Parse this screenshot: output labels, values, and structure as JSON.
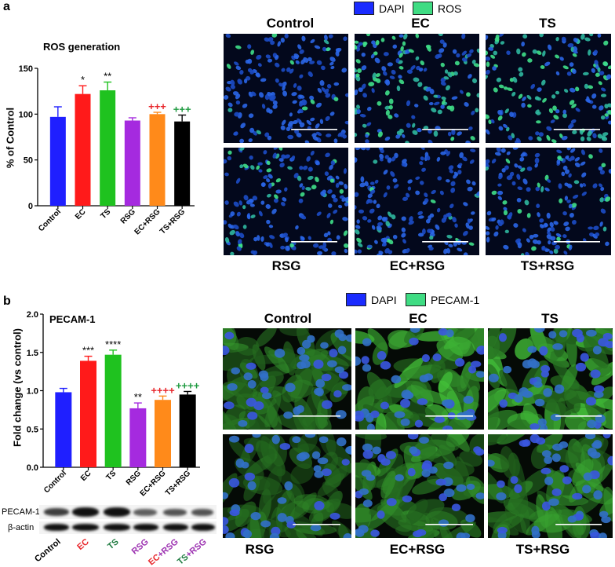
{
  "panel_a": {
    "letter": "a",
    "legend": [
      {
        "label": "DAPI",
        "color": "#1a2bff"
      },
      {
        "label": "ROS",
        "color": "#3fdc83"
      }
    ],
    "micrograph_titles_top": [
      "Control",
      "EC",
      "TS"
    ],
    "micrograph_titles_bottom": [
      "RSG",
      "EC+RSG",
      "TS+RSG"
    ]
  },
  "panel_b": {
    "letter": "b",
    "legend": [
      {
        "label": "DAPI",
        "color": "#1a2bff"
      },
      {
        "label": "PECAM-1",
        "color": "#3fdc83"
      }
    ],
    "micrograph_titles_top": [
      "Control",
      "EC",
      "TS"
    ],
    "micrograph_titles_bottom": [
      "RSG",
      "EC+RSG",
      "TS+RSG"
    ],
    "blot": {
      "rows": [
        "PECAM-1",
        "β-actin"
      ],
      "lanes": [
        {
          "parts": [
            {
              "text": "Control",
              "color": "#000000"
            }
          ]
        },
        {
          "parts": [
            {
              "text": "EC",
              "color": "#e8262b"
            }
          ]
        },
        {
          "parts": [
            {
              "text": "TS",
              "color": "#1d7a3f"
            }
          ]
        },
        {
          "parts": [
            {
              "text": "RSG",
              "color": "#9b2fb0"
            }
          ]
        },
        {
          "parts": [
            {
              "text": "EC",
              "color": "#e8262b"
            },
            {
              "text": "+RSG",
              "color": "#9b2fb0"
            }
          ]
        },
        {
          "parts": [
            {
              "text": "TS",
              "color": "#1d7a3f"
            },
            {
              "text": "+RSG",
              "color": "#9b2fb0"
            }
          ]
        }
      ]
    }
  },
  "chart_data": [
    {
      "type": "bar",
      "title": "ROS generation",
      "ylabel": "% of Control",
      "xlabel": "",
      "ylim": [
        0,
        150
      ],
      "yticks": [
        0,
        50,
        100,
        150
      ],
      "categories": [
        "Control",
        "EC",
        "TS",
        "RSG",
        "EC+RSG",
        "TS+RSG"
      ],
      "values": [
        97,
        122,
        126,
        93,
        100,
        92
      ],
      "errors": [
        11,
        9,
        9,
        3,
        2,
        7
      ],
      "colors": [
        "#1f1fff",
        "#ff1a1a",
        "#1fc21f",
        "#a52adf",
        "#ff8a1a",
        "#000000"
      ],
      "annotations": [
        {
          "text": "",
          "color": "#000000"
        },
        {
          "text": "*",
          "color": "#000000"
        },
        {
          "text": "**",
          "color": "#000000"
        },
        {
          "text": "",
          "color": "#000000"
        },
        {
          "text": "+++",
          "color": "#e8262b"
        },
        {
          "text": "+++",
          "color": "#1d9a3f"
        }
      ]
    },
    {
      "type": "bar",
      "title": "PECAM-1",
      "ylabel": "Fold change (vs control)",
      "xlabel": "",
      "ylim": [
        0,
        2.0
      ],
      "yticks": [
        0.0,
        0.5,
        1.0,
        1.5,
        2.0
      ],
      "categories": [
        "Control",
        "EC",
        "TS",
        "RSG",
        "EC+RSG",
        "TS+RSG"
      ],
      "values": [
        0.98,
        1.39,
        1.47,
        0.77,
        0.88,
        0.95
      ],
      "errors": [
        0.05,
        0.06,
        0.06,
        0.07,
        0.05,
        0.04
      ],
      "colors": [
        "#1f1fff",
        "#ff1a1a",
        "#1fc21f",
        "#a52adf",
        "#ff8a1a",
        "#000000"
      ],
      "annotations": [
        {
          "text": "",
          "color": "#000000"
        },
        {
          "text": "***",
          "color": "#000000"
        },
        {
          "text": "****",
          "color": "#000000"
        },
        {
          "text": "**",
          "color": "#000000"
        },
        {
          "text": "++++",
          "color": "#e8262b"
        },
        {
          "text": "++++",
          "color": "#1d9a3f"
        }
      ]
    }
  ]
}
